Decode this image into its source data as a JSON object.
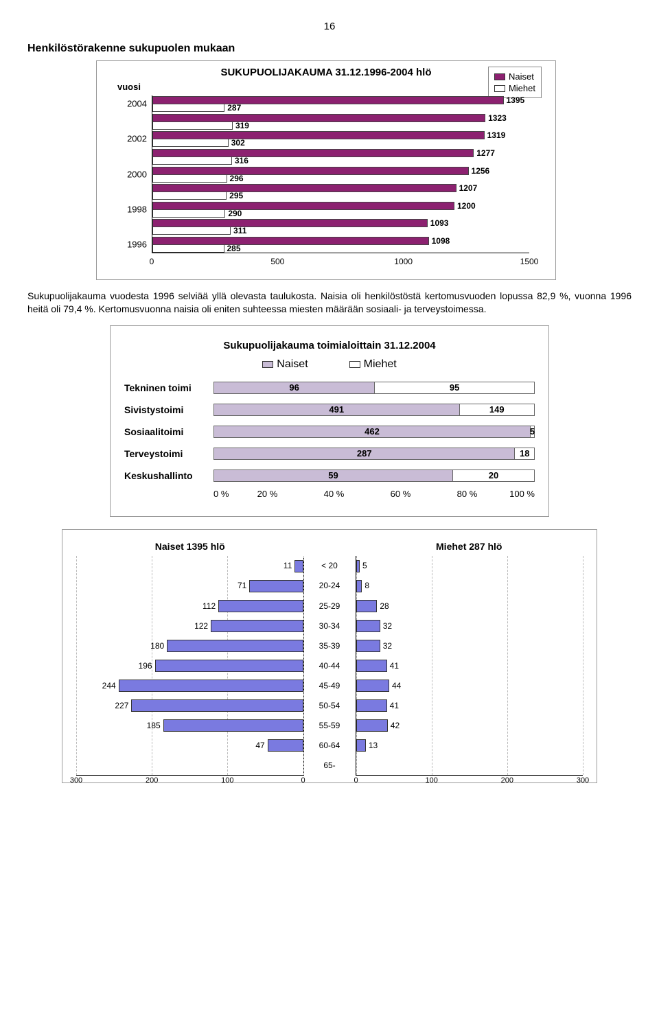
{
  "page_number": "16",
  "heading1": "Henkilöstörakenne sukupuolen mukaan",
  "chart1": {
    "title": "SUKUPUOLIJAKAUMA 31.12.1996-2004 hlö",
    "y_axis_label": "vuosi",
    "legend": {
      "a": "Naiset",
      "b": "Miehet"
    },
    "colors": {
      "naiset": "#8c2170",
      "miehet": "#ffffff",
      "border": "#333333"
    },
    "categories": [
      "2004",
      "2002",
      "2000",
      "1998",
      "1996"
    ],
    "rows": [
      {
        "year": "2004",
        "naiset": 1395,
        "miehet": 287
      },
      {
        "year": "",
        "naiset": 1323,
        "miehet": 319
      },
      {
        "year": "2002",
        "naiset": 1319,
        "miehet": 302
      },
      {
        "year": "",
        "naiset": 1277,
        "miehet": 316
      },
      {
        "year": "2000",
        "naiset": 1256,
        "miehet": 296
      },
      {
        "year": "",
        "naiset": 1207,
        "miehet": 295
      },
      {
        "year": "1998",
        "naiset": 1200,
        "miehet": 290
      },
      {
        "year": "",
        "naiset": 1093,
        "miehet": 311
      },
      {
        "year": "1996",
        "naiset": 1098,
        "miehet": 285
      }
    ],
    "x_ticks": [
      "0",
      "500",
      "1000",
      "1500"
    ],
    "xlim": 1500
  },
  "body_para": "Sukupuolijakauma vuodesta 1996 selviää yllä olevasta taulukosta. Naisia oli henkilöstöstä kertomusvuoden lopussa 82,9 %, vuonna 1996 heitä oli 79,4 %. Kertomusvuonna naisia oli eniten suhteessa miesten määrään sosiaali- ja terveystoimessa.",
  "chart2": {
    "title": "Sukupuolijakauma toimialoittain 31.12.2004",
    "legend": {
      "a": "Naiset",
      "b": "Miehet"
    },
    "colors": {
      "naiset": "#c9bcd6",
      "miehet": "#ffffff"
    },
    "rows": [
      {
        "label": "Tekninen toimi",
        "naiset": 96,
        "miehet": 95
      },
      {
        "label": "Sivistystoimi",
        "naiset": 491,
        "miehet": 149
      },
      {
        "label": "Sosiaalitoimi",
        "naiset": 462,
        "miehet": 5
      },
      {
        "label": "Terveystoimi",
        "naiset": 287,
        "miehet": 18
      },
      {
        "label": "Keskushallinto",
        "naiset": 59,
        "miehet": 20
      }
    ],
    "x_ticks": [
      "0 %",
      "20 %",
      "40 %",
      "60 %",
      "80 %",
      "100 %"
    ]
  },
  "chart3": {
    "left_title": "Naiset 1395 hlö",
    "right_title": "Miehet  287 hlö",
    "color": "#7a7ae0",
    "left": {
      "ticks": [
        "300",
        "200",
        "100",
        "0"
      ],
      "max": 300,
      "rows": [
        {
          "val": 11
        },
        {
          "val": 71
        },
        {
          "val": 112
        },
        {
          "val": 122
        },
        {
          "val": 180
        },
        {
          "val": 196
        },
        {
          "val": 244
        },
        {
          "val": 227
        },
        {
          "val": 185
        },
        {
          "val": 47
        }
      ]
    },
    "right": {
      "ticks": [
        "0",
        "100",
        "200",
        "300"
      ],
      "max": 300,
      "cats": [
        "< 20",
        "20-24",
        "25-29",
        "30-34",
        "35-39",
        "40-44",
        "45-49",
        "50-54",
        "55-59",
        "60-64",
        "65-"
      ],
      "rows": [
        {
          "cat": "< 20",
          "val": 5
        },
        {
          "cat": "20-24",
          "val": 8
        },
        {
          "cat": "25-29",
          "val": 28
        },
        {
          "cat": "30-34",
          "val": 32
        },
        {
          "cat": "35-39",
          "val": 32
        },
        {
          "cat": "40-44",
          "val": 41
        },
        {
          "cat": "45-49",
          "val": 44
        },
        {
          "cat": "50-54",
          "val": 41
        },
        {
          "cat": "55-59",
          "val": 42
        },
        {
          "cat": "60-64",
          "val": 13
        },
        {
          "cat": "65-",
          "val": null
        }
      ]
    }
  }
}
